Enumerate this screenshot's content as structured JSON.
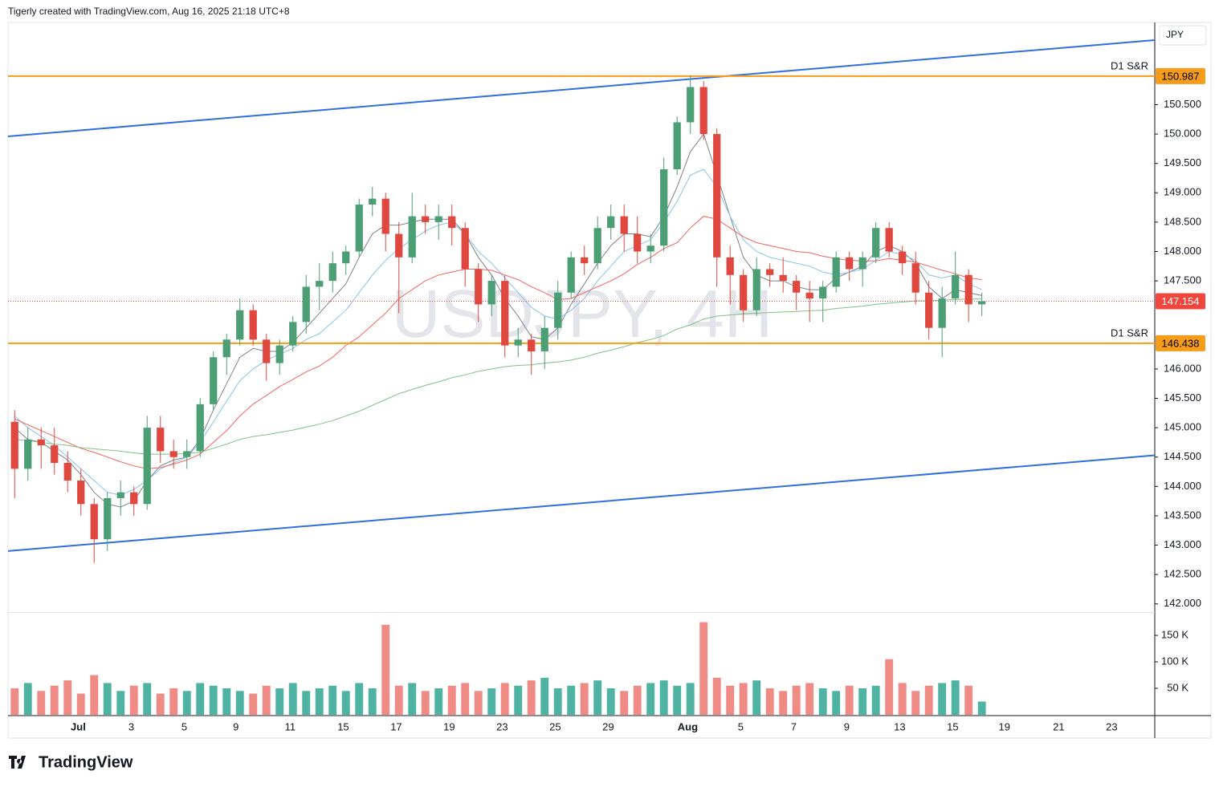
{
  "header": {
    "text": "Tigerly created with TradingView.com, Aug 16, 2025 21:18 UTC+8"
  },
  "footer": {
    "logo": "TradingView"
  },
  "chart_data": {
    "type": "candlestick",
    "watermark": "USDJPY, 4H",
    "currency": "JPY",
    "up_color": "#4c9e74",
    "down_color": "#e0473e",
    "up_volume_color": "#4fb3a3",
    "down_volume_color": "#f08a84",
    "xlim": [
      -0.5,
      86.05
    ],
    "xticks": [
      {
        "value": 4.8,
        "label": "Jul"
      },
      {
        "value": 8.8,
        "label": "3"
      },
      {
        "value": 12.8,
        "label": "5"
      },
      {
        "value": 16.7,
        "label": "9"
      },
      {
        "value": 20.8,
        "label": "11"
      },
      {
        "value": 24.8,
        "label": "15"
      },
      {
        "value": 28.8,
        "label": "17"
      },
      {
        "value": 32.8,
        "label": "19"
      },
      {
        "value": 36.8,
        "label": "23"
      },
      {
        "value": 40.8,
        "label": "25"
      },
      {
        "value": 44.8,
        "label": "29"
      },
      {
        "value": 50.8,
        "label": "Aug"
      },
      {
        "value": 54.8,
        "label": "5"
      },
      {
        "value": 58.8,
        "label": "7"
      },
      {
        "value": 62.8,
        "label": "9"
      },
      {
        "value": 66.8,
        "label": "13"
      },
      {
        "value": 70.8,
        "label": "15"
      },
      {
        "value": 74.7,
        "label": "19"
      },
      {
        "value": 78.8,
        "label": "21"
      },
      {
        "value": 82.8,
        "label": "23"
      }
    ],
    "ylim": [
      141.86,
      151.9
    ],
    "yticks": [
      {
        "value": 142,
        "label": "142.000"
      },
      {
        "value": 142.5,
        "label": "142.500"
      },
      {
        "value": 143,
        "label": "143.000"
      },
      {
        "value": 143.5,
        "label": "143.500"
      },
      {
        "value": 144,
        "label": "144.000"
      },
      {
        "value": 144.5,
        "label": "144.500"
      },
      {
        "value": 145,
        "label": "145.000"
      },
      {
        "value": 145.5,
        "label": "145.500"
      },
      {
        "value": 146,
        "label": "146.000"
      },
      {
        "value": 147.5,
        "label": "147.500"
      },
      {
        "value": 148,
        "label": "148.000"
      },
      {
        "value": 148.5,
        "label": "148.500"
      },
      {
        "value": 149,
        "label": "149.000"
      },
      {
        "value": 149.5,
        "label": "149.500"
      },
      {
        "value": 150,
        "label": "150.000"
      },
      {
        "value": 150.5,
        "label": "150.500"
      }
    ],
    "grid": false,
    "open": [
      145.1,
      144.3,
      144.8,
      144.7,
      144.4,
      144.1,
      143.7,
      143.1,
      143.8,
      143.9,
      143.7,
      145.0,
      144.6,
      144.5,
      144.6,
      145.4,
      146.2,
      146.5,
      147.0,
      146.5,
      146.1,
      146.4,
      146.8,
      147.4,
      147.5,
      147.8,
      148.0,
      148.8,
      148.9,
      148.3,
      147.9,
      148.6,
      148.5,
      148.6,
      148.4,
      147.7,
      147.1,
      147.5,
      146.4,
      146.5,
      146.3,
      146.7,
      147.3,
      147.9,
      147.8,
      148.4,
      148.6,
      148.3,
      148.0,
      148.1,
      149.4,
      150.2,
      150.8,
      150.0,
      147.9,
      147.6,
      147.0,
      147.7,
      147.6,
      147.5,
      147.3,
      147.2,
      147.4,
      147.9,
      147.7,
      147.9,
      148.4,
      148.0,
      147.8,
      147.3,
      146.7,
      147.2,
      147.6,
      147.1
    ],
    "high": [
      145.3,
      145.0,
      145.0,
      145.0,
      144.6,
      144.3,
      143.8,
      143.9,
      144.1,
      144.0,
      145.2,
      145.2,
      144.8,
      144.8,
      145.5,
      146.3,
      146.6,
      147.2,
      147.1,
      146.6,
      146.5,
      146.9,
      147.6,
      147.8,
      148.0,
      148.1,
      148.9,
      149.1,
      149.0,
      148.5,
      149.0,
      148.8,
      148.8,
      148.8,
      148.5,
      147.8,
      147.6,
      147.6,
      146.7,
      146.6,
      146.9,
      147.5,
      148.0,
      148.1,
      148.6,
      148.8,
      148.8,
      148.6,
      148.3,
      149.6,
      150.3,
      151.0,
      150.9,
      150.1,
      148.1,
      147.7,
      147.9,
      147.8,
      147.9,
      147.6,
      147.5,
      147.5,
      148.0,
      148.0,
      148.0,
      148.5,
      148.5,
      148.1,
      148.0,
      147.5,
      147.4,
      148.0,
      147.7,
      147.3
    ],
    "low": [
      143.8,
      144.1,
      144.3,
      144.2,
      143.9,
      143.5,
      142.7,
      142.9,
      143.5,
      143.5,
      143.6,
      144.4,
      144.3,
      144.3,
      144.5,
      145.3,
      145.9,
      146.4,
      146.4,
      145.8,
      145.9,
      146.3,
      146.6,
      147.0,
      147.3,
      147.6,
      147.9,
      148.6,
      148.0,
      146.95,
      147.8,
      148.3,
      148.2,
      148.1,
      147.4,
      146.8,
      146.9,
      146.2,
      146.2,
      145.9,
      146.0,
      146.5,
      147.2,
      147.6,
      147.7,
      148.2,
      148.0,
      147.8,
      147.8,
      148.0,
      149.3,
      150.0,
      149.9,
      147.4,
      147.1,
      146.8,
      146.9,
      147.4,
      147.3,
      147.0,
      146.8,
      146.8,
      147.3,
      147.5,
      147.4,
      147.8,
      147.9,
      147.6,
      147.1,
      146.5,
      146.2,
      147.1,
      146.8,
      146.9
    ],
    "close": [
      144.3,
      144.8,
      144.7,
      144.4,
      144.1,
      143.7,
      143.1,
      143.8,
      143.9,
      143.7,
      145.0,
      144.6,
      144.5,
      144.6,
      145.4,
      146.2,
      146.5,
      147.0,
      146.5,
      146.1,
      146.4,
      146.8,
      147.4,
      147.5,
      147.8,
      148.0,
      148.8,
      148.9,
      148.3,
      147.9,
      148.6,
      148.5,
      148.6,
      148.4,
      147.7,
      147.1,
      147.5,
      146.4,
      146.5,
      146.3,
      146.7,
      147.3,
      147.9,
      147.8,
      148.4,
      148.6,
      148.3,
      148.0,
      148.1,
      149.4,
      150.2,
      150.8,
      150.0,
      147.9,
      147.6,
      147.0,
      147.7,
      147.6,
      147.5,
      147.3,
      147.2,
      147.4,
      147.9,
      147.7,
      147.9,
      148.4,
      148.0,
      147.8,
      147.3,
      146.7,
      147.2,
      147.6,
      147.1,
      147.154
    ],
    "moving_averages": [
      {
        "color": "#7f828c",
        "values": [
          145.0,
          144.8,
          144.75,
          144.6,
          144.45,
          144.2,
          143.9,
          143.7,
          143.65,
          143.75,
          144.1,
          144.35,
          144.45,
          144.5,
          144.8,
          145.3,
          145.75,
          146.2,
          146.35,
          146.3,
          146.3,
          146.45,
          146.7,
          146.95,
          147.2,
          147.45,
          147.9,
          148.3,
          148.45,
          148.45,
          148.5,
          148.55,
          148.55,
          148.55,
          148.3,
          147.9,
          147.6,
          147.2,
          146.9,
          146.55,
          146.5,
          146.7,
          147.1,
          147.45,
          147.8,
          148.1,
          148.3,
          148.3,
          148.25,
          148.6,
          149.1,
          149.7,
          150.0,
          149.3,
          148.6,
          147.9,
          147.6,
          147.5,
          147.5,
          147.4,
          147.35,
          147.35,
          147.55,
          147.65,
          147.75,
          148.0,
          148.1,
          148.0,
          147.8,
          147.4,
          147.2,
          147.35,
          147.3,
          147.25
        ]
      },
      {
        "color": "#86c3ef",
        "values": [
          145.2,
          145.0,
          144.85,
          144.7,
          144.5,
          144.3,
          144.1,
          143.9,
          143.85,
          143.95,
          144.1,
          144.3,
          144.4,
          144.5,
          144.75,
          145.1,
          145.45,
          145.8,
          146.0,
          146.15,
          146.25,
          146.35,
          146.5,
          146.6,
          146.8,
          147.0,
          147.3,
          147.6,
          147.85,
          148.05,
          148.2,
          148.35,
          148.45,
          148.5,
          148.3,
          148.0,
          147.8,
          147.55,
          147.3,
          147.05,
          146.9,
          146.85,
          147.0,
          147.2,
          147.5,
          147.75,
          148.0,
          148.1,
          148.2,
          148.5,
          148.85,
          149.3,
          149.4,
          149.1,
          148.6,
          148.2,
          148.0,
          147.9,
          147.85,
          147.8,
          147.75,
          147.65,
          147.6,
          147.65,
          147.7,
          147.85,
          148.0,
          147.95,
          147.85,
          147.6,
          147.55,
          147.6,
          147.45,
          147.35
        ]
      },
      {
        "color": "#f0665e",
        "values": [
          145.15,
          145.05,
          144.95,
          144.85,
          144.75,
          144.65,
          144.58,
          144.5,
          144.42,
          144.35,
          144.3,
          144.32,
          144.38,
          144.45,
          144.55,
          144.75,
          144.95,
          145.2,
          145.4,
          145.55,
          145.7,
          145.82,
          145.95,
          146.05,
          146.2,
          146.4,
          146.55,
          146.75,
          146.95,
          147.2,
          147.35,
          147.5,
          147.6,
          147.65,
          147.7,
          147.7,
          147.68,
          147.6,
          147.52,
          147.4,
          147.3,
          147.18,
          147.2,
          147.3,
          147.4,
          147.5,
          147.62,
          147.78,
          147.9,
          148.05,
          148.15,
          148.4,
          148.6,
          148.55,
          148.4,
          148.25,
          148.15,
          148.1,
          148.05,
          148.0,
          147.98,
          147.92,
          147.88,
          147.85,
          147.84,
          147.84,
          147.88,
          147.85,
          147.82,
          147.75,
          147.68,
          147.62,
          147.55,
          147.52
        ]
      },
      {
        "color": "#7fc283",
        "values": [
          144.8,
          144.78,
          144.75,
          144.72,
          144.7,
          144.66,
          144.64,
          144.62,
          144.6,
          144.57,
          144.55,
          144.55,
          144.55,
          144.56,
          144.58,
          144.65,
          144.72,
          144.8,
          144.85,
          144.88,
          144.92,
          144.96,
          145.01,
          145.06,
          145.12,
          145.2,
          145.28,
          145.38,
          145.48,
          145.58,
          145.65,
          145.72,
          145.78,
          145.85,
          145.9,
          145.96,
          146.0,
          146.04,
          146.06,
          146.07,
          146.1,
          146.12,
          146.15,
          146.2,
          146.27,
          146.32,
          146.38,
          146.45,
          146.5,
          146.57,
          146.68,
          146.75,
          146.85,
          146.9,
          146.92,
          146.94,
          146.95,
          146.96,
          146.97,
          146.98,
          146.99,
          147.0,
          147.03,
          147.05,
          147.07,
          147.1,
          147.12,
          147.14,
          147.16,
          147.16,
          147.17,
          147.18,
          147.19,
          147.19
        ]
      }
    ],
    "trendlines": [
      {
        "start": 149.96,
        "end": 151.6,
        "color": "#2f6fe0"
      },
      {
        "start": 142.9,
        "end": 144.53,
        "color": "#2f6fe0"
      }
    ],
    "levels": [
      {
        "value": 150.987,
        "label": "D1 S&R",
        "color": "#f59c1a"
      },
      {
        "value": 146.438,
        "label": "D1 S&R",
        "color": "#f59c1a"
      }
    ],
    "last_price": 147.154,
    "last_price_color": "#f2463c",
    "volume": [
      50000,
      60000,
      45000,
      55000,
      65000,
      40000,
      75000,
      60000,
      45000,
      55000,
      60000,
      40000,
      50000,
      45000,
      60000,
      55000,
      50000,
      45000,
      40000,
      55000,
      50000,
      60000,
      45000,
      50000,
      55000,
      45000,
      60000,
      50000,
      170000,
      55000,
      60000,
      45000,
      50000,
      55000,
      60000,
      45000,
      50000,
      60000,
      55000,
      65000,
      70000,
      50000,
      55000,
      60000,
      65000,
      50000,
      45000,
      55000,
      60000,
      65000,
      55000,
      60000,
      175000,
      70000,
      55000,
      60000,
      65000,
      50000,
      45000,
      55000,
      60000,
      50000,
      45000,
      55000,
      50000,
      55000,
      105000,
      60000,
      45000,
      55000,
      60000,
      65000,
      55000,
      25000
    ],
    "volume_ylim": [
      0,
      191000
    ],
    "volume_ticks": [
      {
        "value": 50000,
        "label": "50 K"
      },
      {
        "value": 100000,
        "label": "100 K"
      },
      {
        "value": 150000,
        "label": "150 K"
      }
    ]
  }
}
